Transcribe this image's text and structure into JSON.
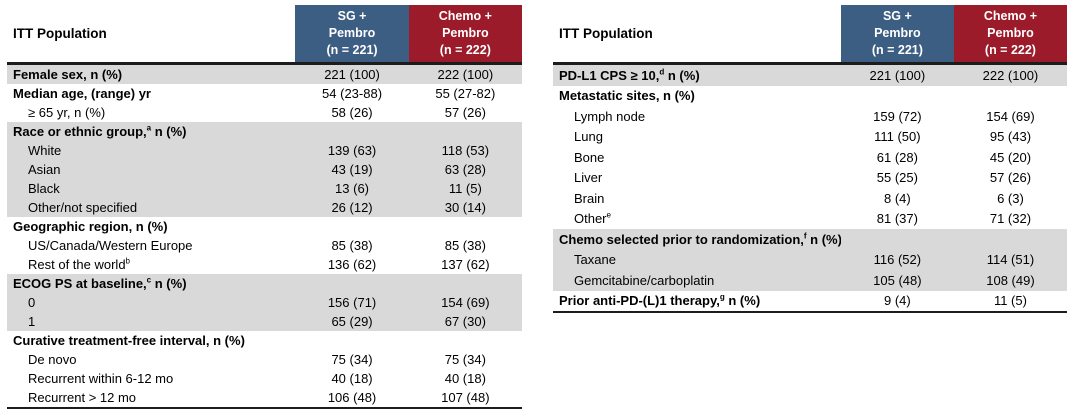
{
  "colors": {
    "sg_blue": "#3c5e83",
    "chemo_red": "#9b1b2b",
    "row_shade": "#d9d9d9",
    "border": "#1c1c1c"
  },
  "tables": [
    {
      "name": "baseline-characteristics-left",
      "corner_label": "ITT Population",
      "columns": [
        {
          "name": "sg-pembro",
          "lines": [
            "SG +",
            "Pembro",
            "(n = 221)"
          ]
        },
        {
          "name": "chemo-pembro",
          "lines": [
            "Chemo +",
            "Pembro",
            "(n = 222)"
          ]
        }
      ],
      "rows": [
        {
          "label": "Female sex, n (%)",
          "bold": true,
          "shaded": true,
          "values": [
            "221 (100)",
            "222 (100)"
          ]
        },
        {
          "label": "Median age, (range) yr",
          "bold": true,
          "values": [
            "54 (23-88)",
            "55 (27-82)"
          ]
        },
        {
          "label": "≥ 65 yr, n (%)",
          "indent": true,
          "values": [
            "58 (26)",
            "57 (26)"
          ]
        },
        {
          "label": "Race or ethnic group,",
          "sup": "a",
          "suffix": " n (%)",
          "bold": true,
          "shaded": true,
          "values": [
            "",
            ""
          ]
        },
        {
          "label": "White",
          "indent": true,
          "shaded": true,
          "values": [
            "139 (63)",
            "118 (53)"
          ]
        },
        {
          "label": "Asian",
          "indent": true,
          "shaded": true,
          "values": [
            "43 (19)",
            "63 (28)"
          ]
        },
        {
          "label": "Black",
          "indent": true,
          "shaded": true,
          "values": [
            "13 (6)",
            "11 (5)"
          ]
        },
        {
          "label": "Other/not specified",
          "indent": true,
          "shaded": true,
          "values": [
            "26 (12)",
            "30 (14)"
          ]
        },
        {
          "label": "Geographic region, n (%)",
          "bold": true,
          "values": [
            "",
            ""
          ]
        },
        {
          "label": "US/Canada/Western Europe",
          "indent": true,
          "values": [
            "85 (38)",
            "85 (38)"
          ]
        },
        {
          "label": "Rest of the world",
          "sup": "b",
          "indent": true,
          "values": [
            "136 (62)",
            "137 (62)"
          ]
        },
        {
          "label": "ECOG PS at baseline,",
          "sup": "c",
          "suffix": " n (%)",
          "bold": true,
          "shaded": true,
          "values": [
            "",
            ""
          ]
        },
        {
          "label": "0",
          "indent": true,
          "shaded": true,
          "values": [
            "156 (71)",
            "154 (69)"
          ]
        },
        {
          "label": "1",
          "indent": true,
          "shaded": true,
          "values": [
            "65 (29)",
            "67 (30)"
          ]
        },
        {
          "label": "Curative treatment-free interval, n (%)",
          "bold": true,
          "values": [
            "",
            ""
          ]
        },
        {
          "label": "De novo",
          "indent": true,
          "values": [
            "75 (34)",
            "75 (34)"
          ]
        },
        {
          "label": "Recurrent within 6-12 mo",
          "indent": true,
          "values": [
            "40 (18)",
            "40 (18)"
          ]
        },
        {
          "label": "Recurrent > 12 mo",
          "indent": true,
          "values": [
            "106 (48)",
            "107 (48)"
          ]
        }
      ]
    },
    {
      "name": "baseline-characteristics-right",
      "corner_label": "ITT Population",
      "columns": [
        {
          "name": "sg-pembro",
          "lines": [
            "SG +",
            "Pembro",
            "(n = 221)"
          ]
        },
        {
          "name": "chemo-pembro",
          "lines": [
            "Chemo +",
            "Pembro",
            "(n = 222)"
          ]
        }
      ],
      "rows": [
        {
          "label": "PD-L1 CPS ≥ 10,",
          "sup": "d",
          "suffix": " n (%)",
          "bold": true,
          "shaded": true,
          "values": [
            "221 (100)",
            "222 (100)"
          ]
        },
        {
          "label": "Metastatic sites, n (%)",
          "bold": true,
          "values": [
            "",
            ""
          ]
        },
        {
          "label": "Lymph node",
          "indent": true,
          "values": [
            "159 (72)",
            "154 (69)"
          ]
        },
        {
          "label": "Lung",
          "indent": true,
          "values": [
            "111 (50)",
            "95 (43)"
          ]
        },
        {
          "label": "Bone",
          "indent": true,
          "values": [
            "61 (28)",
            "45 (20)"
          ]
        },
        {
          "label": "Liver",
          "indent": true,
          "values": [
            "55 (25)",
            "57 (26)"
          ]
        },
        {
          "label": "Brain",
          "indent": true,
          "values": [
            "8 (4)",
            "6 (3)"
          ]
        },
        {
          "label": "Other",
          "sup": "e",
          "indent": true,
          "values": [
            "81 (37)",
            "71 (32)"
          ]
        },
        {
          "label": "Chemo selected prior to randomization,",
          "sup": "f",
          "suffix": " n (%)",
          "bold": true,
          "shaded": true,
          "values": [
            "",
            ""
          ]
        },
        {
          "label": "Taxane",
          "indent": true,
          "shaded": true,
          "values": [
            "116 (52)",
            "114 (51)"
          ]
        },
        {
          "label": "Gemcitabine/carboplatin",
          "indent": true,
          "shaded": true,
          "values": [
            "105 (48)",
            "108 (49)"
          ]
        },
        {
          "label": "Prior anti-PD-(L)1 therapy,",
          "sup": "g",
          "suffix": " n (%)",
          "bold": true,
          "values": [
            "9 (4)",
            "11 (5)"
          ]
        }
      ]
    }
  ]
}
